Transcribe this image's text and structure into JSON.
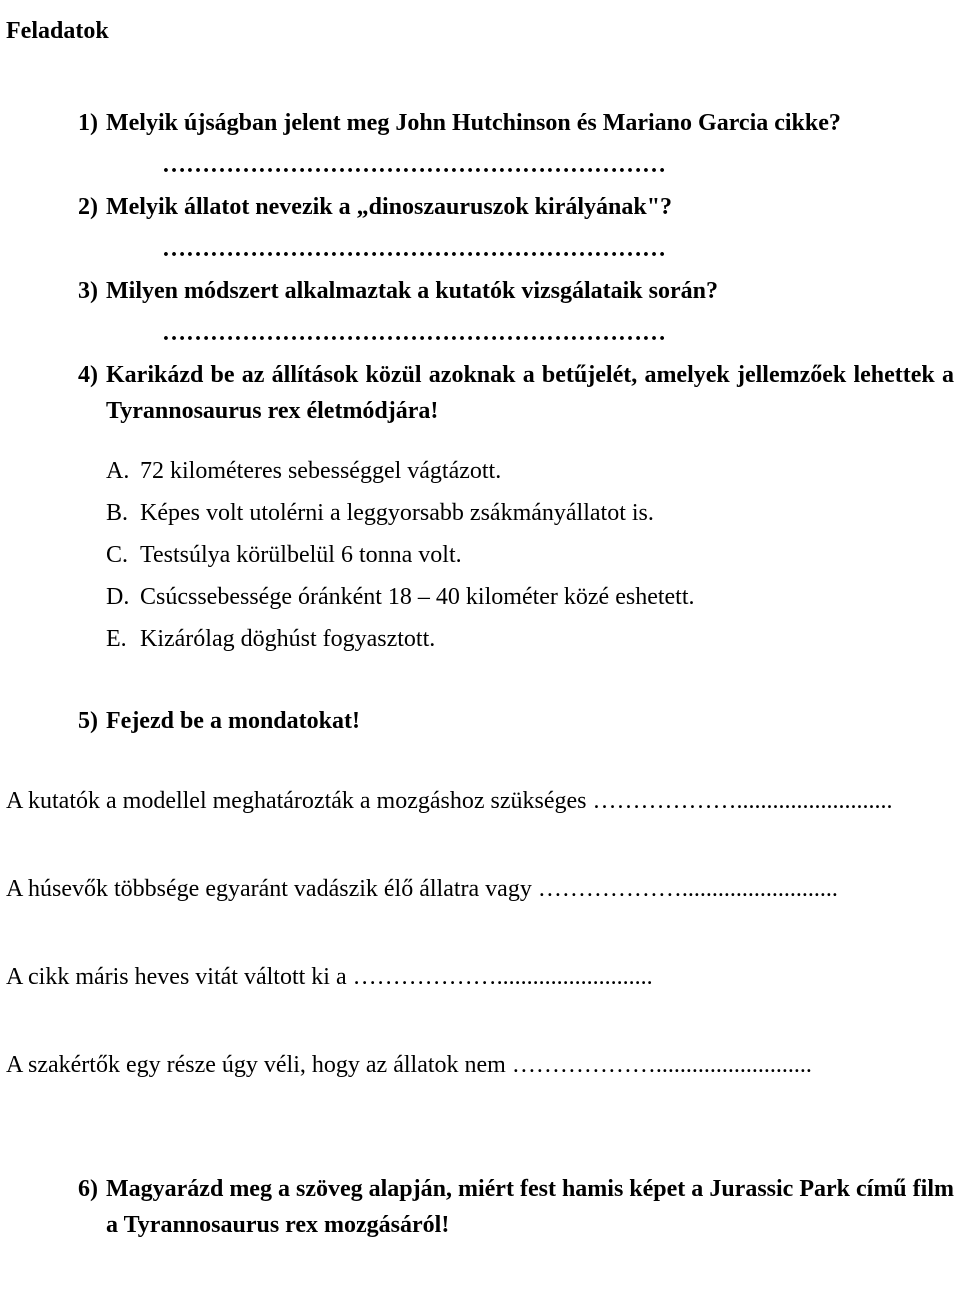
{
  "title": "Feladatok",
  "dots_long": "………………………………………………………",
  "questions": {
    "q1": {
      "num": "1)",
      "text": "Melyik újságban jelent meg John Hutchinson és Mariano Garcia cikke?"
    },
    "q2": {
      "num": "2)",
      "text": "Melyik állatot nevezik a „dinoszauruszok királyának\"?"
    },
    "q3": {
      "num": "3)",
      "text": "Milyen módszert alkalmaztak a kutatók vizsgálataik során?"
    },
    "q4": {
      "num": "4)",
      "text": "Karikázd be az állítások közül azoknak a betűjelét, amelyek jellemzőek lehettek a Tyrannosaurus rex életmódjára!"
    },
    "q5": {
      "num": "5)",
      "text": "Fejezd be a mondatokat!"
    },
    "q6": {
      "num": "6)",
      "text": "Magyarázd meg a szöveg alapján, miért fest hamis képet a Jurassic Park című film a Tyrannosaurus rex mozgásáról!"
    }
  },
  "options": {
    "a": {
      "letter": "A.",
      "text": "72 kilométeres sebességgel vágtázott."
    },
    "b": {
      "letter": "B.",
      "text": "Képes volt utolérni a leggyorsabb zsákmányállatot is."
    },
    "c": {
      "letter": "C.",
      "text": "Testsúlya körülbelül 6 tonna volt."
    },
    "d": {
      "letter": "D.",
      "text": "Csúcssebessége óránként 18 – 40 kilométer közé eshetett."
    },
    "e": {
      "letter": "E.",
      "text": "Kizárólag döghúst fogyasztott."
    }
  },
  "fills": {
    "f1": "A kutatók a modellel meghatározták a mozgáshoz szükséges ………………..........................",
    "f2": "A húsevők többsége egyaránt vadászik élő állatra vagy ………………..........................",
    "f3": "A cikk máris heves vitát váltott ki a ………………..........................",
    "f4": "A szakértők egy része úgy véli, hogy az állatok nem ……………….........................."
  }
}
